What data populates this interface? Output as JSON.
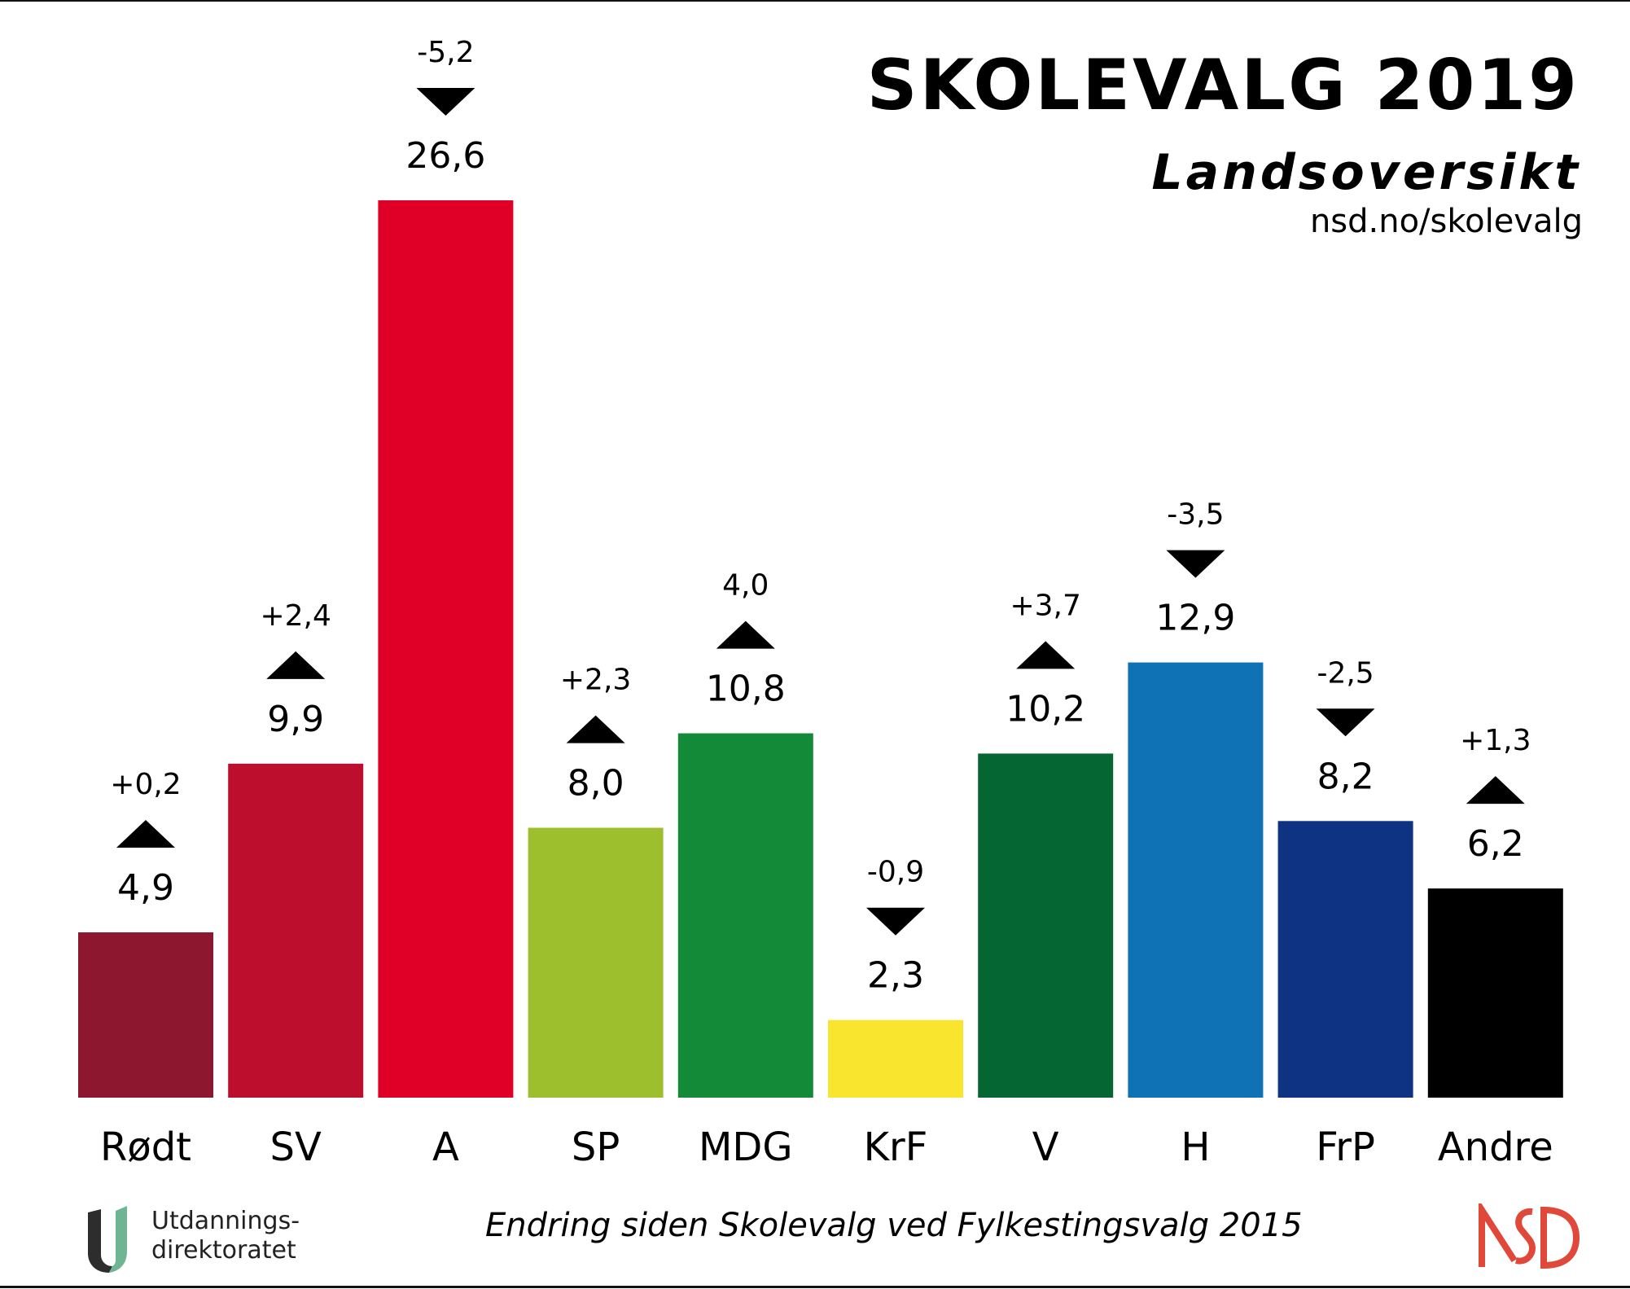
{
  "header": {
    "title": "SKOLEVALG 2019",
    "subtitle": "Landsoversikt",
    "url": "nsd.no/skolevalg"
  },
  "footer": {
    "note": "Endring siden Skolevalg ved Fylkestingsvalg 2015",
    "left_logo": {
      "icon": "udir-u-icon",
      "line1": "Utdannings-",
      "line2": "direktoratet",
      "colors": [
        "#2d2d2d",
        "#6fb594"
      ]
    },
    "right_logo": {
      "icon": "nsd-logo-icon",
      "text": "NSD",
      "color": "#e0483a"
    }
  },
  "chart_data": {
    "type": "bar",
    "title": "SKOLEVALG 2019",
    "subtitle": "Landsoversikt",
    "xlabel": "",
    "ylabel": "",
    "ylim": [
      0,
      26.6
    ],
    "grid": false,
    "legend": "none",
    "categories": [
      "Rødt",
      "SV",
      "A",
      "SP",
      "MDG",
      "KrF",
      "V",
      "H",
      "FrP",
      "Andre"
    ],
    "values": [
      4.9,
      9.9,
      26.6,
      8.0,
      10.8,
      2.3,
      10.2,
      12.9,
      8.2,
      6.2
    ],
    "value_labels": [
      "4,9",
      "9,9",
      "26,6",
      "8,0",
      "10,8",
      "2,3",
      "10,2",
      "12,9",
      "8,2",
      "6,2"
    ],
    "changes": [
      0.2,
      2.4,
      -5.2,
      2.3,
      4.0,
      -0.9,
      3.7,
      -3.5,
      -2.5,
      1.3
    ],
    "change_labels": [
      "+0,2",
      "+2,4",
      "-5,2",
      "+2,3",
      "4,0",
      "-0,9",
      "+3,7",
      "-3,5",
      "-2,5",
      "+1,3"
    ],
    "change_directions": [
      "up",
      "up",
      "down",
      "up",
      "up",
      "down",
      "up",
      "down",
      "down",
      "up"
    ],
    "colors": [
      "#8e1730",
      "#bd0f2d",
      "#e00027",
      "#9dbf2e",
      "#138a37",
      "#f9e42e",
      "#066633",
      "#0e72b4",
      "#0f3383",
      "#000000"
    ],
    "annotation": "Endring siden Skolevalg ved Fylkestingsvalg 2015"
  }
}
